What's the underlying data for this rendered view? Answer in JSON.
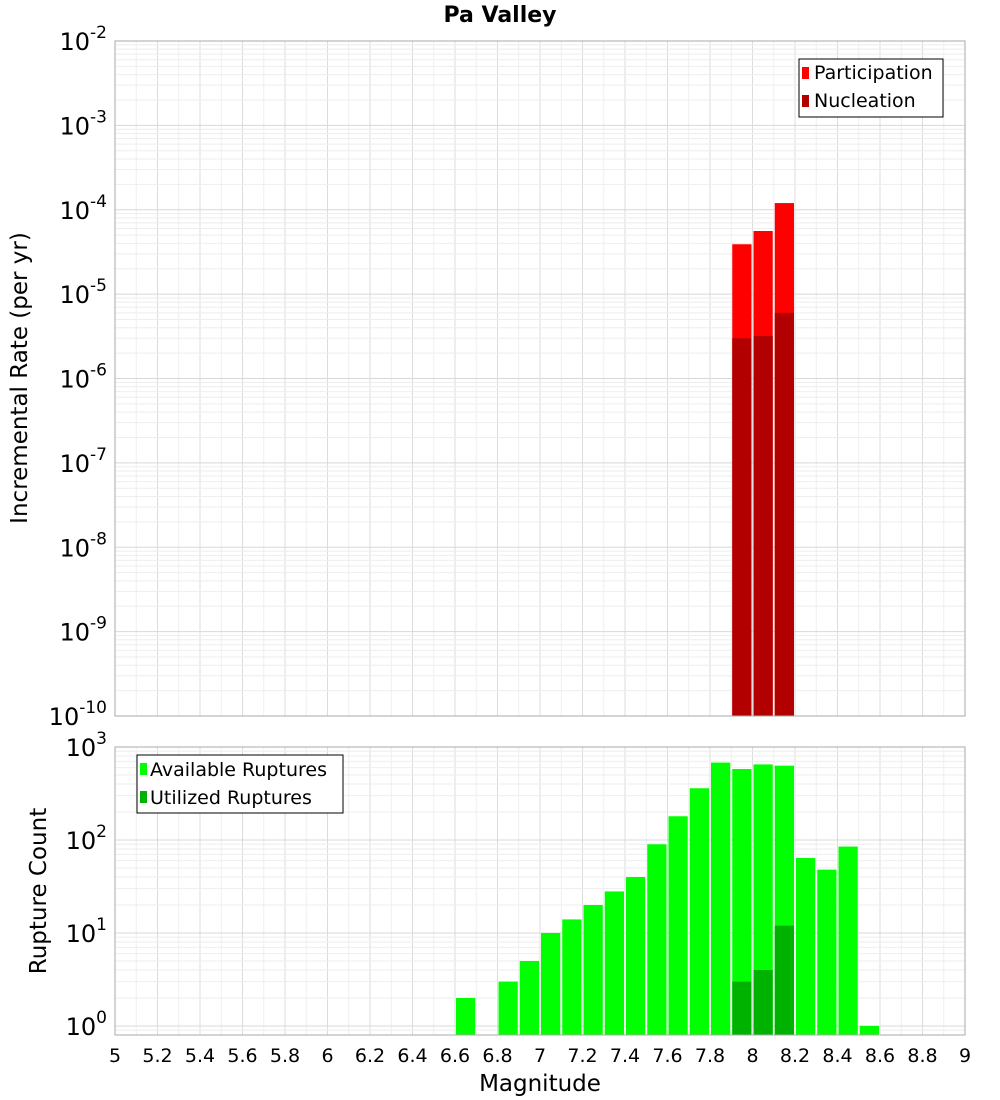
{
  "title": "Pa Valley",
  "chart_data": [
    {
      "type": "bar",
      "title": "Pa Valley",
      "xlabel": "Magnitude",
      "ylabel": "Incremental Rate (per yr)",
      "yscale": "log",
      "xlim": [
        5,
        9
      ],
      "ylim": [
        1e-10,
        0.01
      ],
      "bin_width": 0.1,
      "grid": true,
      "legend_position": "top-right",
      "y_tick_labels": [
        {
          "base": "10",
          "exp": "-10"
        },
        {
          "base": "10",
          "exp": "-9"
        },
        {
          "base": "10",
          "exp": "-8"
        },
        {
          "base": "10",
          "exp": "-7"
        },
        {
          "base": "10",
          "exp": "-6"
        },
        {
          "base": "10",
          "exp": "-5"
        },
        {
          "base": "10",
          "exp": "-4"
        },
        {
          "base": "10",
          "exp": "-3"
        },
        {
          "base": "10",
          "exp": "-2"
        }
      ],
      "series": [
        {
          "name": "Participation",
          "color": "#ff0000",
          "x": [
            7.95,
            8.05,
            8.15
          ],
          "values": [
            3.9e-05,
            5.6e-05,
            0.00012
          ]
        },
        {
          "name": "Nucleation",
          "color": "#b20000",
          "x": [
            7.95,
            8.05,
            8.15
          ],
          "values": [
            3e-06,
            3.2e-06,
            6e-06
          ]
        }
      ]
    },
    {
      "type": "bar",
      "xlabel": "Magnitude",
      "ylabel": "Rupture Count",
      "yscale": "log",
      "xlim": [
        5,
        9
      ],
      "ylim": [
        0.8,
        1000
      ],
      "bin_width": 0.1,
      "grid": true,
      "legend_position": "top-left",
      "x_ticks": [
        "5",
        "5.2",
        "5.4",
        "5.6",
        "5.8",
        "6",
        "6.2",
        "6.4",
        "6.6",
        "6.8",
        "7",
        "7.2",
        "7.4",
        "7.6",
        "7.8",
        "8",
        "8.2",
        "8.4",
        "8.6",
        "8.8",
        "9"
      ],
      "y_tick_labels": [
        {
          "base": "10",
          "exp": "0"
        },
        {
          "base": "10",
          "exp": "1"
        },
        {
          "base": "10",
          "exp": "2"
        },
        {
          "base": "10",
          "exp": "3"
        }
      ],
      "series": [
        {
          "name": "Available Ruptures",
          "color": "#00ff00",
          "x": [
            6.65,
            6.85,
            6.95,
            7.05,
            7.15,
            7.25,
            7.35,
            7.45,
            7.55,
            7.65,
            7.75,
            7.85,
            7.95,
            8.05,
            8.15,
            8.25,
            8.35,
            8.45,
            8.55
          ],
          "values": [
            2,
            3,
            5,
            10,
            14,
            20,
            28,
            40,
            90,
            180,
            360,
            680,
            580,
            650,
            630,
            64,
            48,
            85,
            1
          ]
        },
        {
          "name": "Utilized Ruptures",
          "color": "#00b200",
          "x": [
            7.95,
            8.05,
            8.15
          ],
          "values": [
            3,
            4,
            12
          ]
        }
      ]
    }
  ]
}
